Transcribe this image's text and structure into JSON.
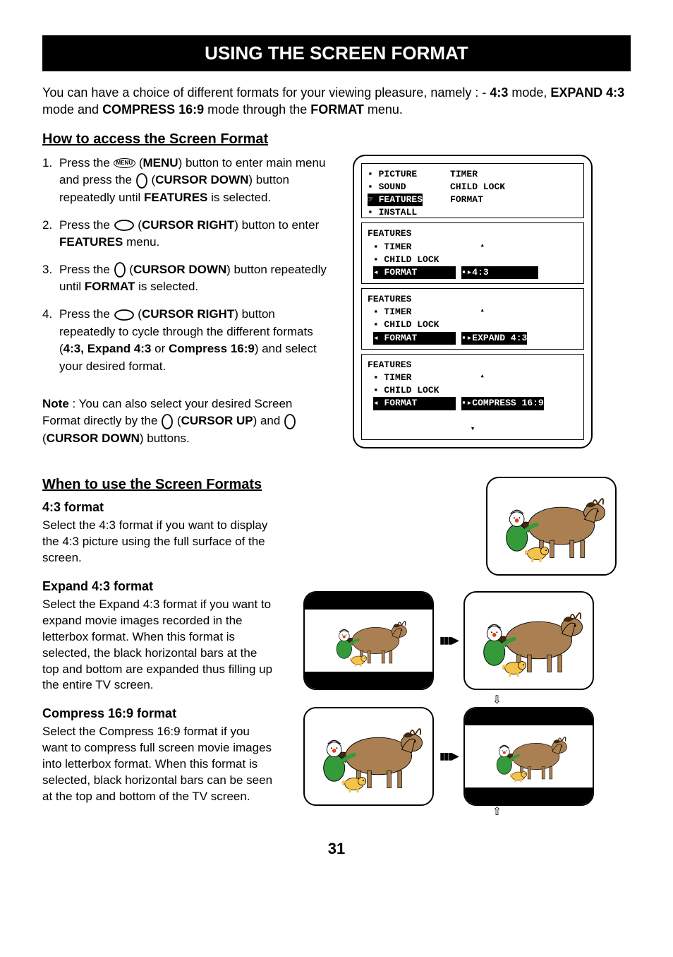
{
  "title": "USING THE SCREEN FORMAT",
  "intro_parts": {
    "t1": "You can have a choice of different formats for your viewing pleasure, namely : - ",
    "b1": "4:3",
    "t2": " mode, ",
    "b2": "EXPAND 4:3",
    "t3": " mode and ",
    "b3": "COMPRESS 16:9",
    "t4": " mode through the ",
    "b4": "FORMAT",
    "t5": " menu."
  },
  "how_heading": "How to access the Screen Format",
  "steps": [
    {
      "num": "1.",
      "parts": [
        "Press the ",
        {
          "icon": "menu"
        },
        " (",
        {
          "b": "MENU"
        },
        ") button to enter main menu and press the ",
        {
          "icon": "circle"
        },
        " (",
        {
          "b": "CURSOR DOWN"
        },
        ") button repeatedly until ",
        {
          "b": "FEATURES"
        },
        " is selected."
      ]
    },
    {
      "num": "2.",
      "parts": [
        "Press the ",
        {
          "icon": "ellipse"
        },
        " (",
        {
          "b": "CURSOR RIGHT"
        },
        ") button to enter ",
        {
          "b": "FEATURES"
        },
        " menu."
      ]
    },
    {
      "num": "3.",
      "parts": [
        "Press the ",
        {
          "icon": "circle"
        },
        " (",
        {
          "b": "CURSOR DOWN"
        },
        ") button repeatedly until ",
        {
          "b": "FORMAT"
        },
        " is selected."
      ]
    },
    {
      "num": "4.",
      "parts": [
        "Press the ",
        {
          "icon": "ellipse"
        },
        " (",
        {
          "b": "CURSOR RIGHT"
        },
        ") button repeatedly to cycle through the different formats (",
        {
          "b": "4:3, Expand 4:3"
        },
        " or ",
        {
          "b": "Compress 16:9"
        },
        ") and select your desired format."
      ]
    }
  ],
  "note_parts": [
    {
      "b": "Note"
    },
    " : You can also select your desired Screen Format directly by the ",
    {
      "icon": "circle"
    },
    " (",
    {
      "b": "CURSOR UP"
    },
    ") and ",
    {
      "icon": "circle"
    },
    " (",
    {
      "b": "CURSOR DOWN"
    },
    ") buttons."
  ],
  "osd": {
    "screen1": {
      "r1l": "▪ PICTURE",
      "r1r": "TIMER",
      "r2l": "▪ SOUND",
      "r2r": "CHILD LOCK",
      "r3l": "☞ FEATURES",
      "r3r": "FORMAT",
      "r4l": "▪ INSTALL"
    },
    "screen2": {
      "title": "FEATURES",
      "i1": "▪ TIMER",
      "i2": "▪ CHILD LOCK",
      "i3": "◂ FORMAT",
      "val": "▪▸4:3"
    },
    "screen3": {
      "title": "FEATURES",
      "i1": "▪ TIMER",
      "i2": "▪ CHILD LOCK",
      "i3": "◂ FORMAT",
      "val": "▪▸EXPAND 4:3"
    },
    "screen4": {
      "title": "FEATURES",
      "i1": "▪ TIMER",
      "i2": "▪ CHILD LOCK",
      "i3": "◂ FORMAT",
      "val": "▪▸COMPRESS 16:9"
    }
  },
  "when_heading": "When to use the Screen Formats",
  "formats": {
    "f43_h": "4:3 format",
    "f43_p": "Select the 4:3 format if you want to display the 4:3 picture using the full surface of the screen.",
    "exp_h": "Expand 4:3 format",
    "exp_p": "Select the Expand 4:3 format if you want to expand movie images recorded in the letterbox format. When this format is selected, the black horizontal bars at the top and bottom are expanded thus filling up the entire TV screen.",
    "cmp_h": "Compress 16:9 format",
    "cmp_p": "Select the Compress 16:9 format if you want to compress full screen movie images into letterbox format. When this format is selected, black horizontal bars can be seen at the top and bottom of the TV screen."
  },
  "pagenum": "31",
  "colors": {
    "horse": "#aa8053",
    "mane": "#3f2810",
    "clown_suit": "#349a3a",
    "clown_face": "#ffffff",
    "clown_nose": "#e63a1b",
    "clown_hat": "#e0e0e0",
    "dog": "#f5c24a"
  }
}
